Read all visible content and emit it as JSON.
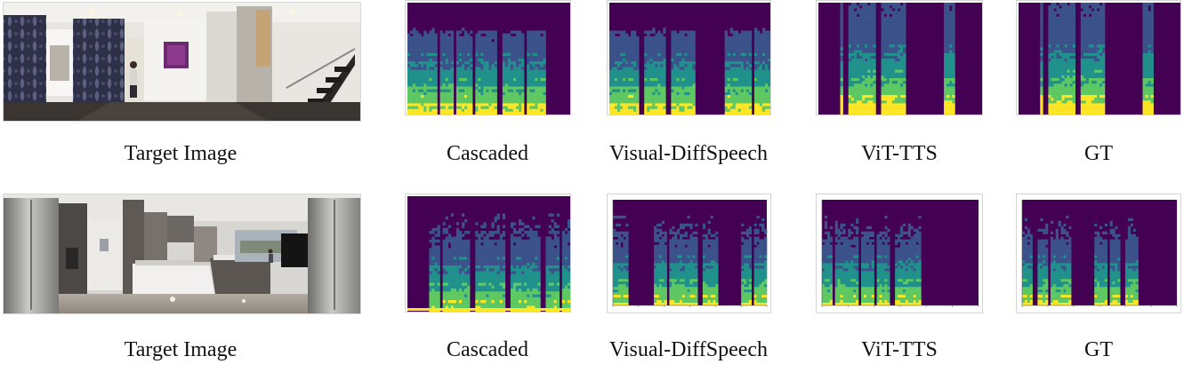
{
  "rows": [
    {
      "id": "row-1",
      "scene": "hallway",
      "captions": [
        "Target Image",
        "Cascaded",
        "Visual-DiffSpeech",
        "ViT-TTS",
        "GT"
      ]
    },
    {
      "id": "row-2",
      "scene": "kitchen",
      "captions": [
        "Target Image",
        "Cascaded",
        "Visual-DiffSpeech",
        "ViT-TTS",
        "GT"
      ]
    }
  ],
  "colors": {
    "spectrogram_background": "#440154",
    "spectrogram_low": "#3b528b",
    "spectrogram_mid": "#21918c",
    "spectrogram_high": "#5ec962",
    "spectrogram_peak": "#fde725"
  }
}
